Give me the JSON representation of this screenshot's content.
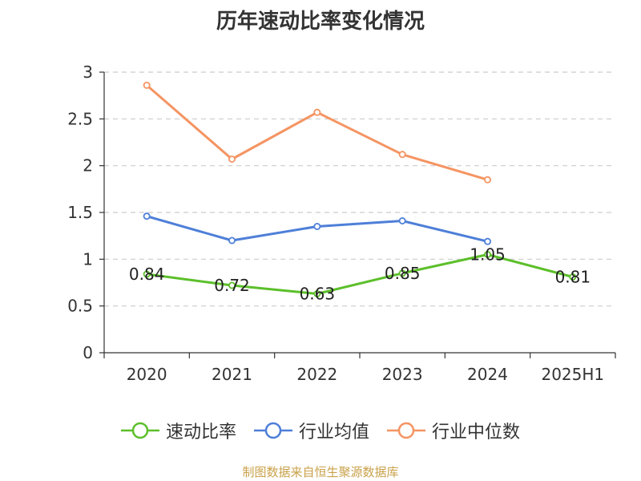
{
  "chart_data": {
    "type": "line",
    "title": "历年速动比率变化情况",
    "categories": [
      "2020",
      "2021",
      "2022",
      "2023",
      "2024",
      "2025H1"
    ],
    "yticks": [
      "0",
      "0.5",
      "1",
      "1.5",
      "2",
      "2.5",
      "3"
    ],
    "ylim": [
      0,
      3
    ],
    "grid": true,
    "legend_position": "bottom",
    "series": [
      {
        "name": "速动比率",
        "color": "#5cbf2a",
        "labels": [
          "0.84",
          "0.72",
          "0.63",
          "0.85",
          "1.05",
          "0.81"
        ],
        "values": [
          0.84,
          0.72,
          0.63,
          0.85,
          1.05,
          0.81
        ]
      },
      {
        "name": "行业均值",
        "color": "#4e7fd8",
        "values": [
          1.46,
          1.2,
          1.35,
          1.41,
          1.19,
          null
        ]
      },
      {
        "name": "行业中位数",
        "color": "#f59462",
        "values": [
          2.86,
          2.07,
          2.57,
          2.12,
          1.85,
          null
        ]
      }
    ]
  },
  "source": "制图数据来自恒生聚源数据库"
}
